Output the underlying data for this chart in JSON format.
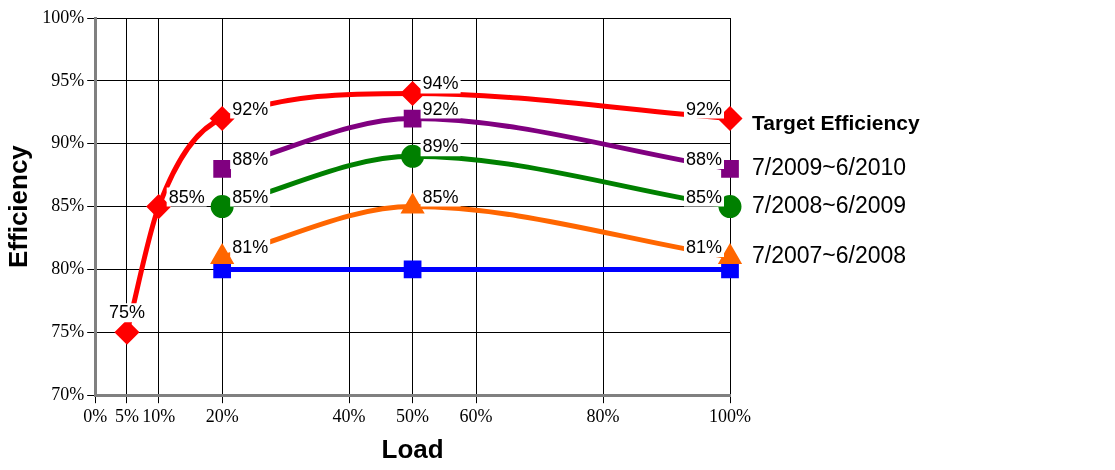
{
  "chart_data": {
    "type": "line",
    "xlabel": "Load",
    "ylabel": "Efficiency",
    "xlim": [
      0,
      100
    ],
    "xticks": [
      {
        "value": 0,
        "label": "0%"
      },
      {
        "value": 5,
        "label": "5%"
      },
      {
        "value": 10,
        "label": "10%"
      },
      {
        "value": 20,
        "label": "20%"
      },
      {
        "value": 40,
        "label": "40%"
      },
      {
        "value": 50,
        "label": "50%"
      },
      {
        "value": 60,
        "label": "60%"
      },
      {
        "value": 80,
        "label": "80%"
      },
      {
        "value": 100,
        "label": "100%"
      }
    ],
    "ylim": [
      70,
      100
    ],
    "yticks": [
      {
        "value": 70,
        "label": "70%"
      },
      {
        "value": 75,
        "label": "75%"
      },
      {
        "value": 80,
        "label": "80%"
      },
      {
        "value": 85,
        "label": "85%"
      },
      {
        "value": 90,
        "label": "90%"
      },
      {
        "value": 95,
        "label": "95%"
      },
      {
        "value": 100,
        "label": "100%"
      }
    ],
    "grid": true,
    "legend": "right",
    "series": [
      {
        "name": "Target Efficiency",
        "color": "#ff0000",
        "marker": "diamond",
        "x": [
          5,
          10,
          20,
          50,
          100
        ],
        "values": [
          75,
          85,
          92,
          94,
          92
        ],
        "value_labels": [
          "75%",
          "85%",
          "92%",
          "94%",
          "92%"
        ]
      },
      {
        "name": "7/2009~6/2010",
        "color": "#800080",
        "marker": "square",
        "x": [
          20,
          50,
          100
        ],
        "values": [
          88,
          92,
          88
        ],
        "value_labels": [
          "88%",
          "92%",
          "88%"
        ]
      },
      {
        "name": "7/2008~6/2009",
        "color": "#008000",
        "marker": "circle",
        "x": [
          20,
          50,
          100
        ],
        "values": [
          85,
          89,
          85
        ],
        "value_labels": [
          "85%",
          "89%",
          "85%"
        ]
      },
      {
        "name": "7/2007~6/2008",
        "color": "#ff6600",
        "marker": "triangle",
        "x": [
          20,
          50,
          100
        ],
        "values": [
          81,
          85,
          81
        ],
        "value_labels": [
          "81%",
          "85%",
          "81%"
        ]
      },
      {
        "color": "#0000ff",
        "marker": "square",
        "x": [
          20,
          50,
          100
        ],
        "values": [
          80,
          80,
          80
        ]
      }
    ]
  }
}
